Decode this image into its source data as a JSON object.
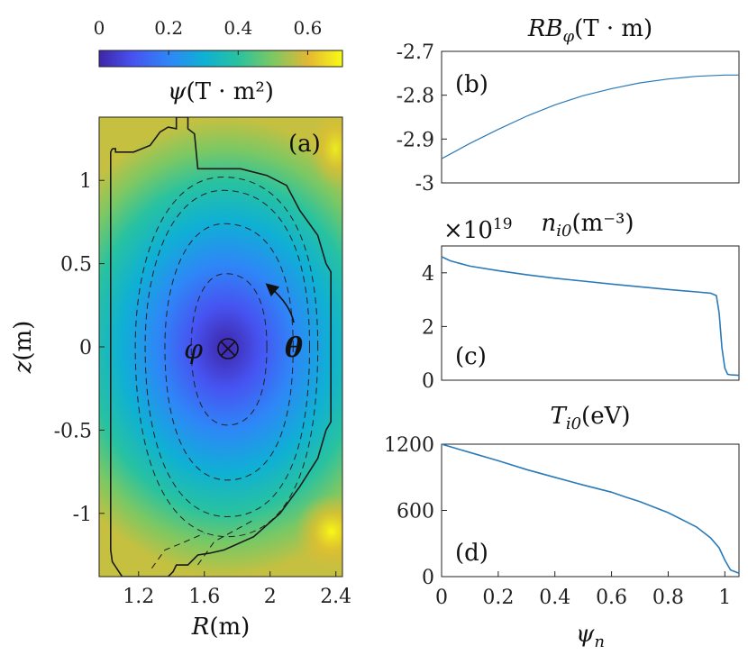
{
  "colors": {
    "line": "#2a7ab8",
    "vessel": "#1a1a1a",
    "flux": "#222222",
    "colormap": [
      "#3e26a8",
      "#4753f1",
      "#2e87f7",
      "#0fb0d4",
      "#28c2a0",
      "#7ac864",
      "#e3b733",
      "#f9fb15"
    ]
  },
  "chart_data": [
    {
      "type": "heatmap",
      "panel_label": "(a)",
      "xlabel_var": "R",
      "xlabel_unit": "(m)",
      "ylabel_var": "z",
      "ylabel_unit": "(m)",
      "xlim": [
        0.96,
        2.44
      ],
      "ylim": [
        -1.38,
        1.38
      ],
      "xticks": [
        1.2,
        1.6,
        2,
        2.4
      ],
      "xtick_labels": [
        "1.2",
        "1.6",
        "2",
        "2.4"
      ],
      "yticks": [
        1,
        0.5,
        0,
        -0.5,
        -1
      ],
      "ytick_labels": [
        "1",
        "0.5",
        "0",
        "-0.5",
        "-1"
      ],
      "colorbar": {
        "label_var": "ψ",
        "label_unit": "(T · m²)",
        "range": [
          0,
          0.7
        ],
        "ticks": [
          0,
          0.2,
          0.4,
          0.6
        ],
        "tick_labels": [
          "0",
          "0.2",
          "0.4",
          "0.6"
        ]
      },
      "magnetic_axis": {
        "R": 1.74,
        "z": 0.0
      },
      "toroidal_label": "φ",
      "poloidal_label": "θ",
      "flux_surfaces": [
        {
          "R_in": 1.52,
          "R_out": 1.98,
          "z_up": 0.44,
          "z_dn": -0.47
        },
        {
          "R_in": 1.36,
          "R_out": 2.14,
          "z_up": 0.74,
          "z_dn": -0.8
        },
        {
          "R_in": 1.24,
          "R_out": 2.24,
          "z_up": 0.94,
          "z_dn": -1.02
        },
        {
          "R_in": 1.18,
          "R_out": 2.29,
          "z_up": 1.02,
          "z_dn": -1.14
        }
      ],
      "vessel": [
        [
          1.04,
          1.19
        ],
        [
          1.06,
          1.19
        ],
        [
          1.06,
          1.17
        ],
        [
          1.17,
          1.17
        ],
        [
          1.27,
          1.21
        ],
        [
          1.33,
          1.29
        ],
        [
          1.38,
          1.32
        ],
        [
          1.43,
          1.31
        ],
        [
          1.43,
          1.38
        ],
        [
          1.5,
          1.38
        ],
        [
          1.5,
          1.31
        ],
        [
          1.54,
          1.28
        ],
        [
          1.56,
          1.07
        ],
        [
          1.6,
          1.07
        ],
        [
          1.82,
          1.07
        ],
        [
          1.98,
          1.03
        ],
        [
          2.1,
          0.97
        ],
        [
          2.18,
          0.82
        ],
        [
          2.29,
          0.67
        ],
        [
          2.34,
          0.5
        ],
        [
          2.37,
          0.45
        ],
        [
          2.37,
          -0.45
        ],
        [
          2.34,
          -0.5
        ],
        [
          2.29,
          -0.67
        ],
        [
          2.18,
          -0.84
        ],
        [
          2.06,
          -1.0
        ],
        [
          1.9,
          -1.14
        ],
        [
          1.72,
          -1.22
        ],
        [
          1.63,
          -1.24
        ],
        [
          1.56,
          -1.25
        ],
        [
          1.5,
          -1.31
        ],
        [
          1.43,
          -1.31
        ],
        [
          1.41,
          -1.35
        ],
        [
          1.38,
          -1.38
        ],
        [
          1.1,
          -1.38
        ],
        [
          1.04,
          -1.29
        ],
        [
          1.03,
          -1.22
        ],
        [
          1.03,
          1.17
        ],
        [
          1.04,
          1.19
        ]
      ]
    },
    {
      "type": "line",
      "panel_label": "(b)",
      "title_var": "RB",
      "title_sub": "φ",
      "title_unit": "(T · m)",
      "xlim": [
        0,
        1.05
      ],
      "ylim": [
        -3.0,
        -2.7
      ],
      "yticks": [
        -2.7,
        -2.8,
        -2.9,
        -3.0
      ],
      "ytick_labels": [
        "-2.7",
        "-2.8",
        "-2.9",
        "-3"
      ],
      "series": [
        {
          "name": "RB_phi",
          "x": [
            0,
            0.1,
            0.2,
            0.3,
            0.4,
            0.5,
            0.6,
            0.7,
            0.8,
            0.9,
            1.0,
            1.05
          ],
          "y": [
            -2.945,
            -2.91,
            -2.878,
            -2.848,
            -2.822,
            -2.801,
            -2.785,
            -2.772,
            -2.763,
            -2.757,
            -2.754,
            -2.754
          ]
        }
      ]
    },
    {
      "type": "line",
      "panel_label": "(c)",
      "title_var": "n",
      "title_sub": "i0",
      "title_unit": "(m⁻³)",
      "multiplier_base": "×10",
      "multiplier_exp": "19",
      "xlim": [
        0,
        1.05
      ],
      "ylim": [
        0,
        5
      ],
      "yticks": [
        4,
        2,
        0
      ],
      "ytick_labels": [
        "4",
        "2",
        "0"
      ],
      "series": [
        {
          "name": "n_i0",
          "x": [
            0,
            0.03,
            0.1,
            0.2,
            0.3,
            0.4,
            0.5,
            0.6,
            0.7,
            0.8,
            0.9,
            0.95,
            0.97,
            0.98,
            0.99,
            1.0,
            1.01,
            1.02,
            1.05
          ],
          "y": [
            4.6,
            4.45,
            4.25,
            4.08,
            3.93,
            3.8,
            3.69,
            3.58,
            3.48,
            3.38,
            3.29,
            3.24,
            3.15,
            2.5,
            1.2,
            0.45,
            0.22,
            0.2,
            0.18
          ]
        }
      ]
    },
    {
      "type": "line",
      "panel_label": "(d)",
      "title_var": "T",
      "title_sub": "i0",
      "title_unit": "(eV)",
      "xlabel_var": "ψ",
      "xlabel_sub": "n",
      "xlim": [
        0,
        1.05
      ],
      "ylim": [
        0,
        1200
      ],
      "xticks": [
        0,
        0.2,
        0.4,
        0.6,
        0.8,
        1
      ],
      "xtick_labels": [
        "0",
        "0.2",
        "0.4",
        "0.6",
        "0.8",
        "1"
      ],
      "yticks": [
        1200,
        600,
        0
      ],
      "ytick_labels": [
        "1200",
        "600",
        "0"
      ],
      "series": [
        {
          "name": "T_i0",
          "x": [
            0,
            0.1,
            0.2,
            0.3,
            0.4,
            0.5,
            0.6,
            0.65,
            0.7,
            0.8,
            0.9,
            0.95,
            0.98,
            1.0,
            1.02,
            1.05
          ],
          "y": [
            1200,
            1125,
            1050,
            970,
            900,
            830,
            765,
            720,
            680,
            580,
            450,
            350,
            260,
            150,
            60,
            30
          ]
        }
      ]
    }
  ]
}
